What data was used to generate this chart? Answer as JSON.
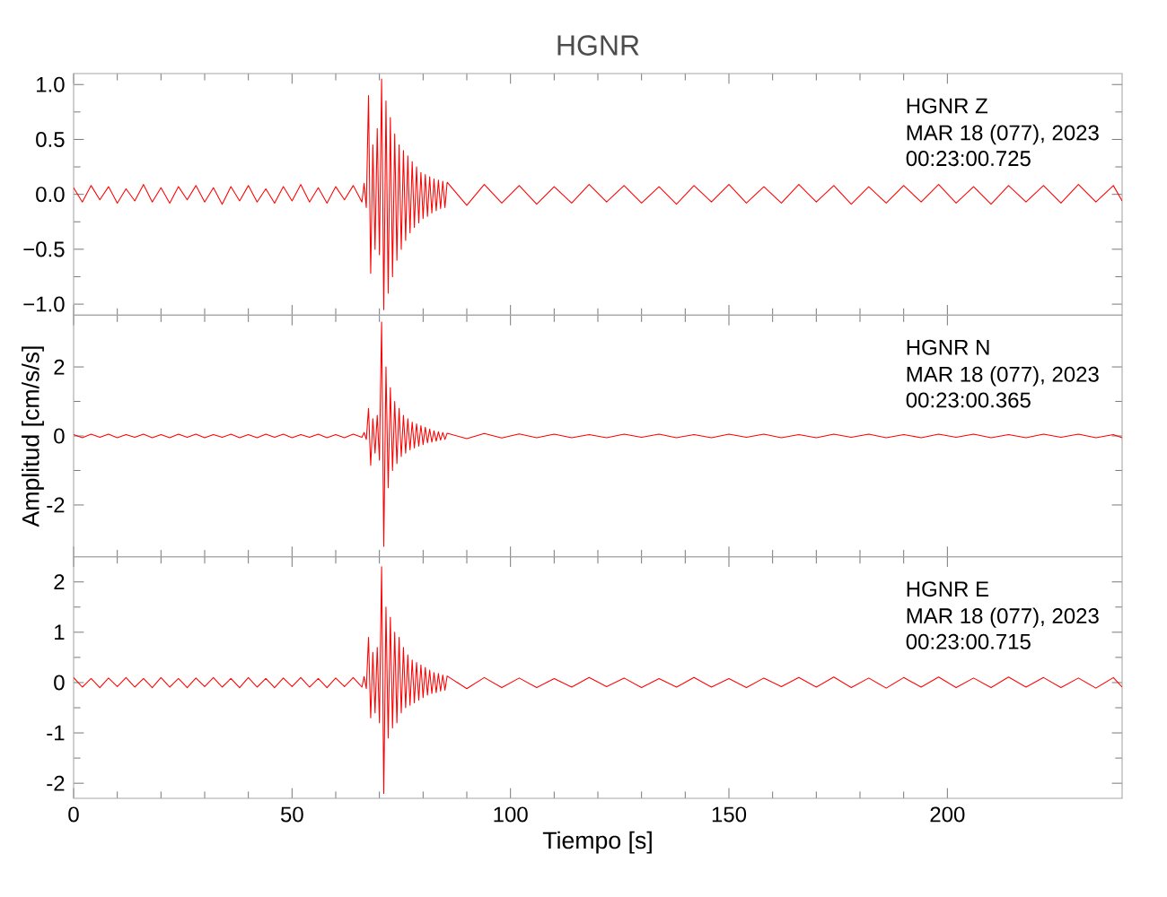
{
  "chart_data": [
    {
      "type": "line",
      "title": "HGNR",
      "tick_labels": "y",
      "annotations": [
        "HGNR  Z",
        "MAR 18 (077), 2023",
        "00:23:00.725"
      ],
      "xlim": [
        0,
        240
      ],
      "xticks": [
        0,
        50,
        100,
        150,
        200
      ],
      "ylim": [
        -1.1,
        1.1
      ],
      "yticks": [
        {
          "value": -1,
          "label": "−1.0"
        },
        {
          "value": -0.5,
          "label": "−0.5"
        },
        {
          "value": 0,
          "label": "0.0"
        },
        {
          "value": 0.5,
          "label": "0.5"
        },
        {
          "value": 1,
          "label": "1.0"
        }
      ],
      "x": [
        0,
        2,
        4,
        6,
        8,
        10,
        12,
        14,
        16,
        18,
        20,
        22,
        24,
        26,
        28,
        30,
        32,
        34,
        36,
        38,
        40,
        42,
        44,
        46,
        48,
        50,
        52,
        54,
        56,
        58,
        60,
        62,
        64,
        66,
        66.5,
        67,
        67.5,
        68,
        68.5,
        69,
        69.5,
        70,
        70.5,
        71,
        71.5,
        72,
        72.5,
        73,
        73.5,
        74,
        74.5,
        75,
        75.5,
        76,
        76.5,
        77,
        77.5,
        78,
        78.5,
        79,
        79.5,
        80,
        80.5,
        81,
        81.5,
        82,
        82.5,
        83,
        83.5,
        84,
        84.5,
        85,
        85.5,
        90,
        94,
        98,
        102,
        106,
        110,
        114,
        118,
        122,
        126,
        130,
        134,
        138,
        142,
        146,
        150,
        154,
        158,
        162,
        166,
        170,
        174,
        178,
        182,
        186,
        190,
        194,
        198,
        202,
        206,
        210,
        214,
        218,
        222,
        226,
        230,
        234,
        238,
        240
      ],
      "series": [
        {
          "color": "#ff0000",
          "values": [
            0.06,
            -0.07,
            0.08,
            -0.05,
            0.07,
            -0.08,
            0.05,
            -0.06,
            0.09,
            -0.07,
            0.06,
            -0.08,
            0.07,
            -0.05,
            0.08,
            -0.07,
            0.06,
            -0.09,
            0.07,
            -0.06,
            0.08,
            -0.07,
            0.05,
            -0.08,
            0.07,
            -0.06,
            0.09,
            -0.07,
            0.06,
            -0.08,
            0.07,
            -0.05,
            0.08,
            -0.07,
            0.1,
            -0.12,
            0.9,
            -0.72,
            0.45,
            -0.5,
            0.6,
            -0.55,
            1.05,
            -1.05,
            0.85,
            -0.9,
            0.7,
            -0.75,
            0.55,
            -0.6,
            0.45,
            -0.5,
            0.4,
            -0.42,
            0.35,
            -0.35,
            0.3,
            -0.3,
            0.25,
            -0.26,
            0.2,
            -0.22,
            0.18,
            -0.2,
            0.16,
            -0.17,
            0.14,
            -0.15,
            0.13,
            -0.13,
            0.12,
            -0.12,
            0.11,
            -0.1,
            0.09,
            -0.08,
            0.08,
            -0.09,
            0.07,
            -0.08,
            0.09,
            -0.07,
            0.08,
            -0.08,
            0.07,
            -0.09,
            0.08,
            -0.07,
            0.09,
            -0.08,
            0.07,
            -0.08,
            0.09,
            -0.07,
            0.08,
            -0.09,
            0.07,
            -0.08,
            0.08,
            -0.07,
            0.09,
            -0.08,
            0.07,
            -0.09,
            0.08,
            -0.07,
            0.08,
            -0.08,
            0.09,
            -0.07,
            0.08,
            -0.06
          ]
        }
      ]
    },
    {
      "type": "line",
      "ylabel": "Amplitud [cm/s/s]",
      "tick_labels": "y",
      "annotations": [
        "HGNR  N",
        "MAR 18 (077), 2023",
        "00:23:00.365"
      ],
      "xlim": [
        0,
        240
      ],
      "xticks": [
        0,
        50,
        100,
        150,
        200
      ],
      "ylim": [
        -3.5,
        3.5
      ],
      "yticks": [
        -2,
        0,
        2
      ],
      "x": [
        0,
        2,
        4,
        6,
        8,
        10,
        12,
        14,
        16,
        18,
        20,
        22,
        24,
        26,
        28,
        30,
        32,
        34,
        36,
        38,
        40,
        42,
        44,
        46,
        48,
        50,
        52,
        54,
        56,
        58,
        60,
        62,
        64,
        66,
        66.5,
        67,
        67.5,
        68,
        68.5,
        69,
        69.5,
        70,
        70.5,
        71,
        71.5,
        72,
        72.5,
        73,
        73.5,
        74,
        74.5,
        75,
        75.5,
        76,
        76.5,
        77,
        77.5,
        78,
        78.5,
        79,
        79.5,
        80,
        80.5,
        81,
        81.5,
        82,
        82.5,
        83,
        83.5,
        84,
        84.5,
        85,
        85.5,
        90,
        94,
        98,
        102,
        106,
        110,
        114,
        118,
        122,
        126,
        130,
        134,
        138,
        142,
        146,
        150,
        154,
        158,
        162,
        166,
        170,
        174,
        178,
        182,
        186,
        190,
        194,
        198,
        202,
        206,
        210,
        214,
        218,
        222,
        226,
        230,
        234,
        238,
        240
      ],
      "series": [
        {
          "color": "#ff0000",
          "values": [
            0.04,
            -0.05,
            0.05,
            -0.04,
            0.05,
            -0.05,
            0.04,
            -0.04,
            0.05,
            -0.05,
            0.04,
            -0.05,
            0.05,
            -0.04,
            0.05,
            -0.05,
            0.04,
            -0.04,
            0.05,
            -0.05,
            0.04,
            -0.05,
            0.05,
            -0.04,
            0.05,
            -0.05,
            0.04,
            -0.04,
            0.05,
            -0.05,
            0.04,
            -0.05,
            0.05,
            -0.04,
            0.1,
            -0.1,
            0.8,
            -0.85,
            0.5,
            -0.5,
            0.6,
            -0.7,
            3.3,
            -3.2,
            2.0,
            -1.5,
            1.4,
            -1.0,
            1.0,
            -0.8,
            0.8,
            -0.6,
            0.6,
            -0.5,
            0.5,
            -0.4,
            0.4,
            -0.35,
            0.35,
            -0.3,
            0.3,
            -0.25,
            0.25,
            -0.2,
            0.2,
            -0.18,
            0.15,
            -0.15,
            0.12,
            -0.12,
            0.1,
            -0.1,
            0.08,
            -0.08,
            0.07,
            -0.06,
            0.06,
            -0.05,
            0.05,
            -0.05,
            0.04,
            -0.05,
            0.05,
            -0.04,
            0.05,
            -0.05,
            0.04,
            -0.05,
            0.05,
            -0.04,
            0.05,
            -0.05,
            0.04,
            -0.05,
            0.05,
            -0.04,
            0.05,
            -0.05,
            0.04,
            -0.05,
            0.05,
            -0.04,
            0.05,
            -0.05,
            0.04,
            -0.05,
            0.05,
            -0.04,
            0.05,
            -0.05,
            0.04,
            -0.05
          ]
        }
      ]
    },
    {
      "type": "line",
      "xlabel": "Tiempo [s]",
      "annotations": [
        "HGNR  E",
        "MAR 18 (077), 2023",
        "00:23:00.715"
      ],
      "xlim": [
        0,
        240
      ],
      "xticks": [
        0,
        50,
        100,
        150,
        200
      ],
      "ylim": [
        -2.3,
        2.5
      ],
      "yticks": [
        -2,
        -1,
        0,
        1,
        2
      ],
      "x": [
        0,
        2,
        4,
        6,
        8,
        10,
        12,
        14,
        16,
        18,
        20,
        22,
        24,
        26,
        28,
        30,
        32,
        34,
        36,
        38,
        40,
        42,
        44,
        46,
        48,
        50,
        52,
        54,
        56,
        58,
        60,
        62,
        64,
        66,
        66.5,
        67,
        67.5,
        68,
        68.5,
        69,
        69.5,
        70,
        70.5,
        71,
        71.5,
        72,
        72.5,
        73,
        73.5,
        74,
        74.5,
        75,
        75.5,
        76,
        76.5,
        77,
        77.5,
        78,
        78.5,
        79,
        79.5,
        80,
        80.5,
        81,
        81.5,
        82,
        82.5,
        83,
        83.5,
        84,
        84.5,
        85,
        85.5,
        90,
        94,
        98,
        102,
        106,
        110,
        114,
        118,
        122,
        126,
        130,
        134,
        138,
        142,
        146,
        150,
        154,
        158,
        162,
        166,
        170,
        174,
        178,
        182,
        186,
        190,
        194,
        198,
        202,
        206,
        210,
        214,
        218,
        222,
        226,
        230,
        234,
        238,
        240
      ],
      "series": [
        {
          "color": "#ff0000",
          "values": [
            0.1,
            -0.09,
            0.08,
            -0.1,
            0.09,
            -0.08,
            0.1,
            -0.09,
            0.08,
            -0.1,
            0.1,
            -0.09,
            0.08,
            -0.1,
            0.09,
            -0.08,
            0.1,
            -0.09,
            0.08,
            -0.1,
            0.1,
            -0.09,
            0.08,
            -0.1,
            0.09,
            -0.08,
            0.1,
            -0.09,
            0.08,
            -0.1,
            0.09,
            -0.08,
            0.1,
            -0.09,
            0.12,
            -0.12,
            0.9,
            -0.7,
            0.6,
            -0.6,
            0.7,
            -0.8,
            2.3,
            -2.2,
            1.5,
            -1.1,
            1.3,
            -0.9,
            1.0,
            -0.8,
            0.9,
            -0.6,
            0.7,
            -0.5,
            0.55,
            -0.45,
            0.45,
            -0.4,
            0.4,
            -0.35,
            0.35,
            -0.3,
            0.3,
            -0.25,
            0.25,
            -0.22,
            0.2,
            -0.2,
            0.18,
            -0.17,
            0.15,
            -0.15,
            0.13,
            -0.12,
            0.1,
            -0.1,
            0.09,
            -0.1,
            0.08,
            -0.09,
            0.1,
            -0.08,
            0.09,
            -0.1,
            0.08,
            -0.09,
            0.1,
            -0.09,
            0.08,
            -0.1,
            0.09,
            -0.08,
            0.1,
            -0.09,
            0.11,
            -0.1,
            0.09,
            -0.11,
            0.1,
            -0.09,
            0.11,
            -0.1,
            0.09,
            -0.1,
            0.11,
            -0.09,
            0.1,
            -0.1,
            0.09,
            -0.11,
            0.1,
            -0.09
          ]
        }
      ]
    }
  ]
}
